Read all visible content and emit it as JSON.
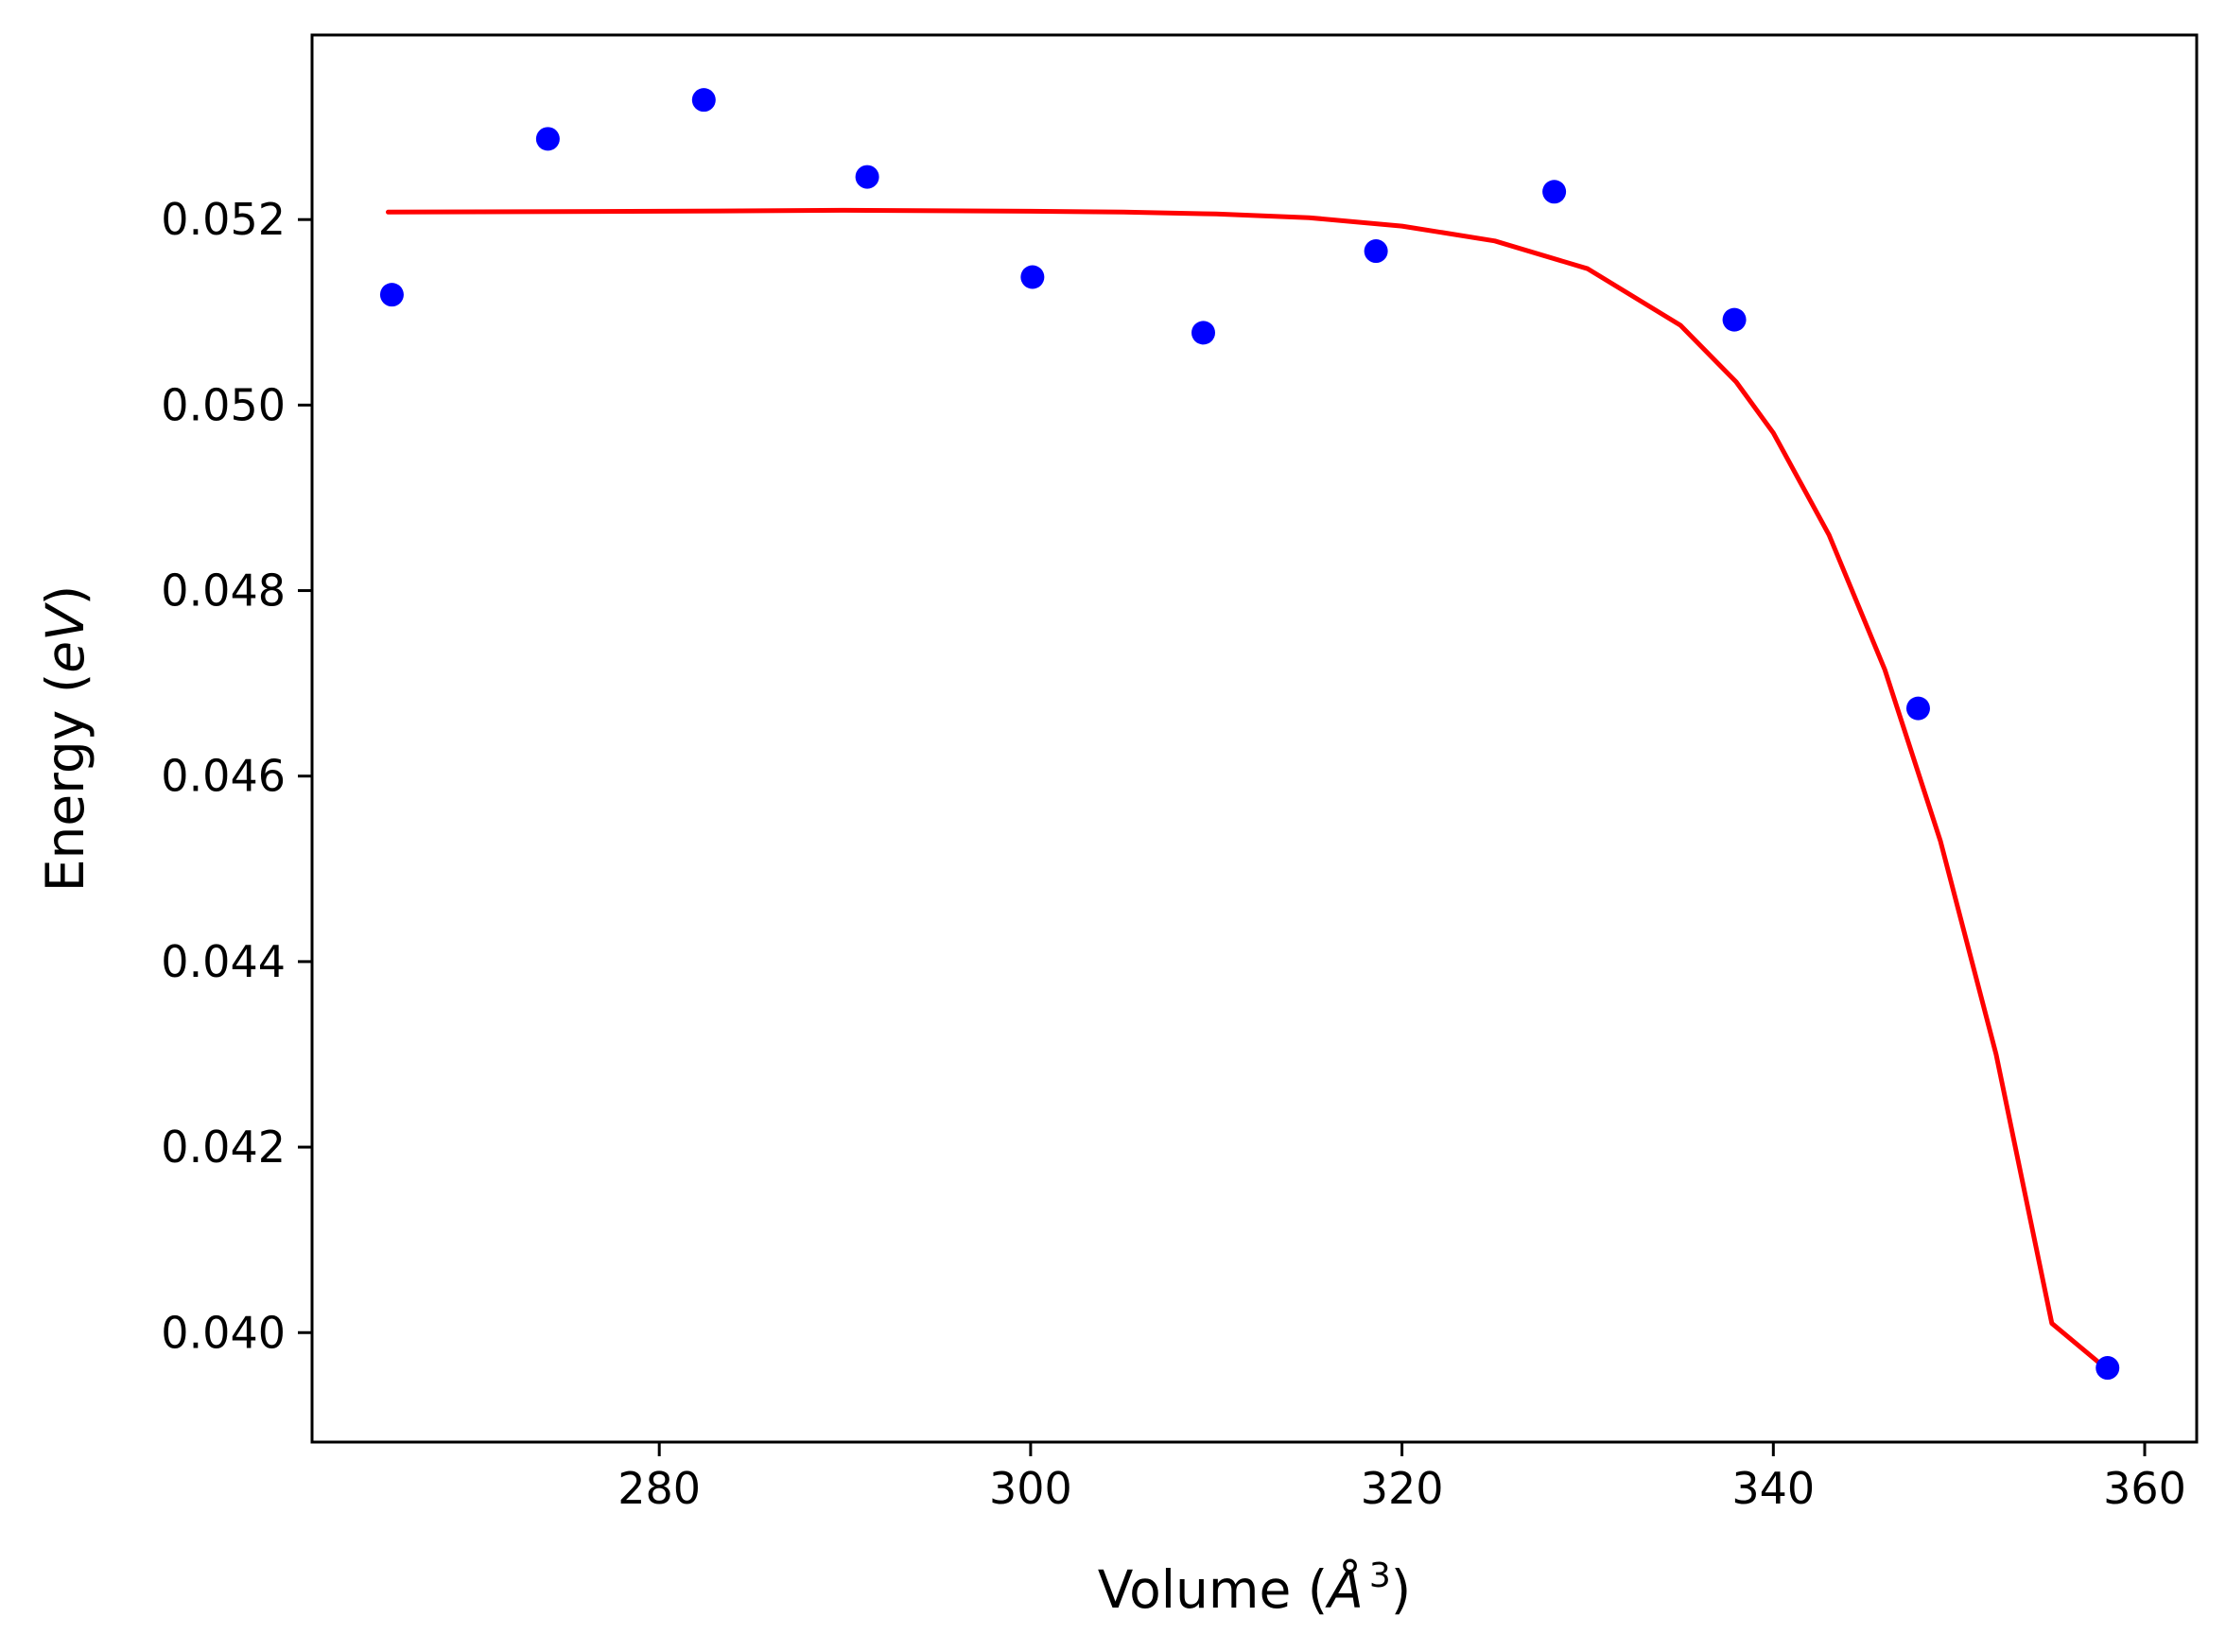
{
  "chart_data": {
    "type": "scatter",
    "xlabel": {
      "prefix": "Volume (",
      "unit_symbol": "Å",
      "exponent": "3",
      "suffix": ")"
    },
    "ylabel": {
      "prefix": "Energy (",
      "unit": "eV",
      "suffix": ")"
    },
    "xlim": [
      261.3,
      362.8
    ],
    "ylim": [
      0.03882,
      0.05399
    ],
    "xticks": [
      280,
      300,
      320,
      340,
      360
    ],
    "xtick_labels": [
      "280",
      "300",
      "320",
      "340",
      "360"
    ],
    "yticks": [
      0.04,
      0.042,
      0.044,
      0.046,
      0.048,
      0.05,
      0.052
    ],
    "ytick_labels": [
      "0.040",
      "0.042",
      "0.044",
      "0.046",
      "0.048",
      "0.050",
      "0.052"
    ],
    "grid": false,
    "series": [
      {
        "kind": "scatter",
        "color": "#0000ff",
        "x": [
          265.6,
          274.0,
          282.4,
          291.2,
          300.1,
          309.3,
          318.6,
          328.2,
          337.9,
          347.8,
          358.0
        ],
        "y": [
          0.05119,
          0.05287,
          0.05329,
          0.05246,
          0.05138,
          0.05078,
          0.05166,
          0.0523,
          0.05092,
          0.04673,
          0.03962
        ]
      },
      {
        "kind": "line",
        "color": "#ff0000",
        "x": [
          265.4,
          280,
          290,
          300,
          305,
          310,
          315,
          320,
          325,
          330,
          335,
          338,
          340,
          343,
          346,
          349,
          352,
          355,
          358
        ],
        "y": [
          0.05208,
          0.05209,
          0.0521,
          0.05209,
          0.05208,
          0.05206,
          0.05202,
          0.05193,
          0.05177,
          0.05147,
          0.05086,
          0.05025,
          0.0497,
          0.0486,
          0.04715,
          0.0453,
          0.043,
          0.0401,
          0.0396
        ]
      }
    ]
  }
}
